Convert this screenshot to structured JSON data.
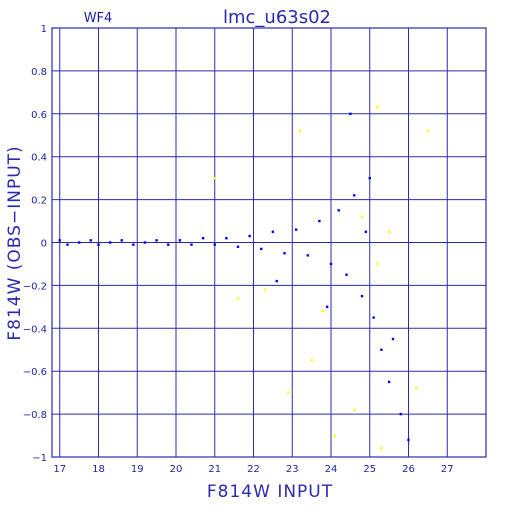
{
  "chart_data": {
    "type": "scatter",
    "panel_label": "WF4",
    "title": "lmc_u63s02",
    "xlabel": "F814W INPUT",
    "ylabel": "F814W (OBS−INPUT)",
    "xlim": [
      16.8,
      28
    ],
    "ylim": [
      -1,
      1
    ],
    "x_ticks": [
      17,
      18,
      19,
      20,
      21,
      22,
      23,
      24,
      25,
      26,
      27
    ],
    "y_ticks": [
      1,
      0.8,
      0.6,
      0.4,
      0.2,
      0,
      -0.2,
      -0.4,
      -0.6,
      -0.8,
      -1
    ],
    "x_tick_labels": [
      "17",
      "18",
      "19",
      "20",
      "21",
      "22",
      "23",
      "24",
      "25",
      "26",
      "27"
    ],
    "y_tick_labels": [
      "1",
      "0.8",
      "0.6",
      "0.4",
      "0.2",
      "0",
      "−0.2",
      "−0.4",
      "−0.6",
      "−0.8",
      "−1"
    ],
    "grid": true,
    "colors": {
      "frame": "#2a2ab0",
      "grid": "#2a2ab0",
      "main_series": "#0000ff",
      "highlight_series": "#ffff00",
      "text": "#2a2ab0"
    },
    "series": [
      {
        "color": "#0000ff",
        "points": [
          [
            17.0,
            0.01
          ],
          [
            17.2,
            -0.01
          ],
          [
            17.5,
            0.0
          ],
          [
            17.8,
            0.01
          ],
          [
            18.0,
            -0.01
          ],
          [
            18.3,
            0.0
          ],
          [
            18.6,
            0.01
          ],
          [
            18.9,
            -0.01
          ],
          [
            19.2,
            0.0
          ],
          [
            19.5,
            0.01
          ],
          [
            19.8,
            -0.01
          ],
          [
            20.1,
            0.01
          ],
          [
            20.4,
            -0.01
          ],
          [
            20.7,
            0.02
          ],
          [
            21.0,
            -0.01
          ],
          [
            21.3,
            0.02
          ],
          [
            21.6,
            -0.02
          ],
          [
            21.9,
            0.03
          ],
          [
            22.2,
            -0.03
          ],
          [
            22.5,
            0.05
          ],
          [
            22.8,
            -0.05
          ],
          [
            23.1,
            0.06
          ],
          [
            23.4,
            -0.06
          ],
          [
            23.7,
            0.1
          ],
          [
            24.0,
            -0.1
          ],
          [
            24.2,
            0.15
          ],
          [
            24.4,
            -0.15
          ],
          [
            24.6,
            0.22
          ],
          [
            24.8,
            -0.25
          ],
          [
            25.0,
            0.3
          ],
          [
            25.1,
            -0.35
          ],
          [
            25.3,
            -0.5
          ],
          [
            25.5,
            -0.65
          ],
          [
            25.8,
            -0.8
          ],
          [
            26.0,
            -0.92
          ],
          [
            24.5,
            0.6
          ],
          [
            23.9,
            -0.3
          ],
          [
            22.6,
            -0.18
          ],
          [
            25.6,
            -0.45
          ],
          [
            24.9,
            0.05
          ]
        ]
      },
      {
        "color": "#ffff00",
        "points": [
          [
            21.0,
            0.3
          ],
          [
            23.2,
            0.52
          ],
          [
            25.2,
            0.63
          ],
          [
            26.5,
            0.52
          ],
          [
            22.3,
            -0.22
          ],
          [
            21.6,
            -0.26
          ],
          [
            23.8,
            -0.32
          ],
          [
            25.2,
            -0.1
          ],
          [
            24.8,
            0.12
          ],
          [
            25.5,
            0.05
          ],
          [
            22.9,
            -0.7
          ],
          [
            24.1,
            -0.9
          ],
          [
            25.3,
            -0.96
          ],
          [
            23.5,
            -0.55
          ],
          [
            24.6,
            -0.78
          ],
          [
            26.2,
            -0.68
          ]
        ]
      }
    ]
  }
}
